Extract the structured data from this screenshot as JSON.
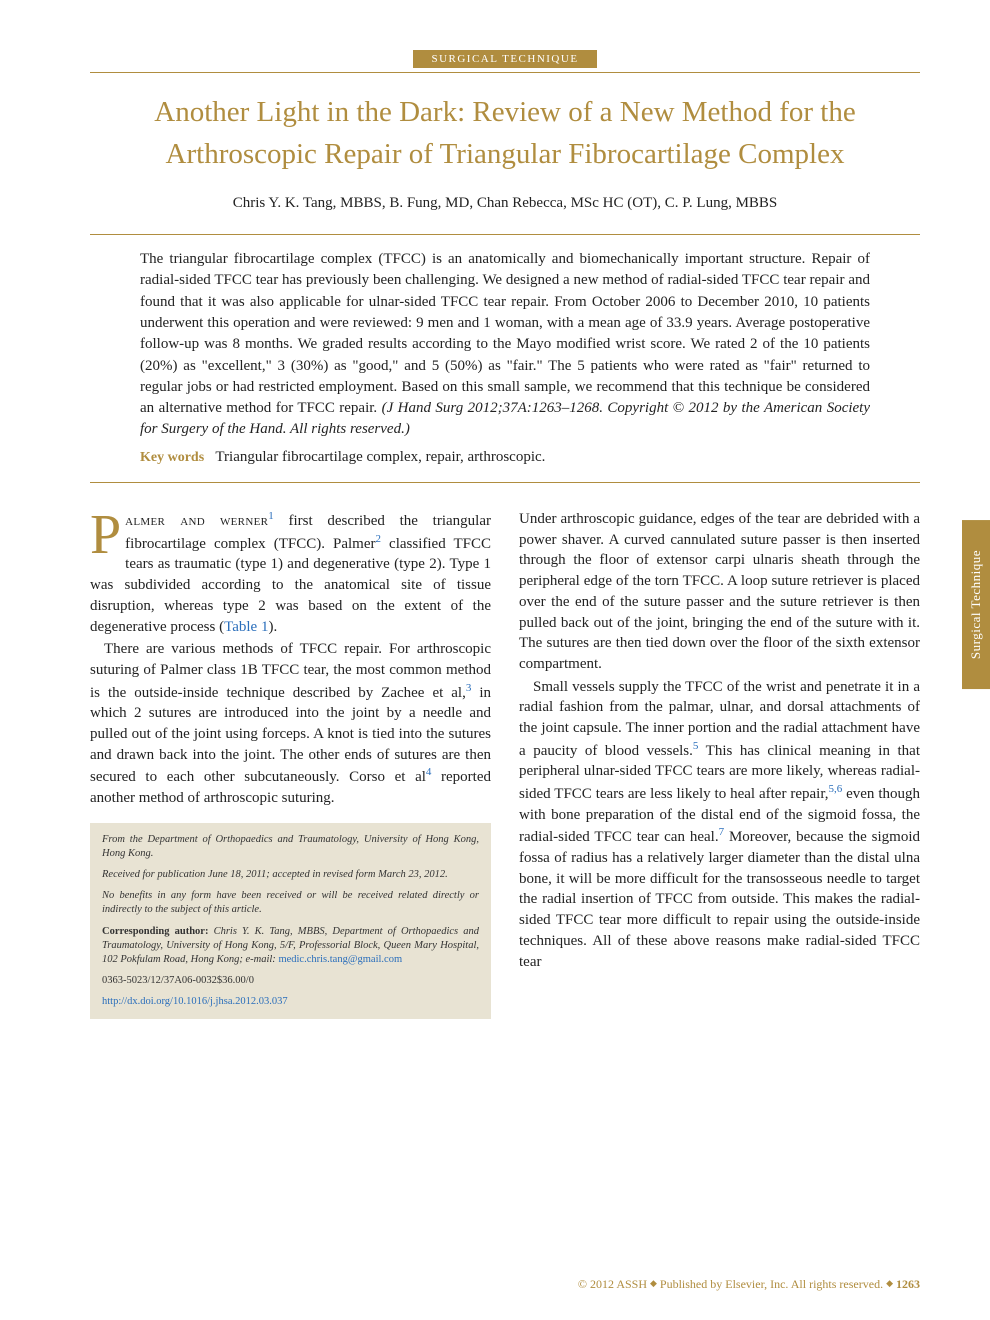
{
  "section_badge": "SURGICAL TECHNIQUE",
  "title": "Another Light in the Dark: Review of a New Method for the Arthroscopic Repair of Triangular Fibrocartilage Complex",
  "authors": "Chris Y. K. Tang, MBBS, B. Fung, MD, Chan Rebecca, MSc HC (OT), C. P. Lung, MBBS",
  "abstract": "The triangular fibrocartilage complex (TFCC) is an anatomically and biomechanically important structure. Repair of radial-sided TFCC tear has previously been challenging. We designed a new method of radial-sided TFCC tear repair and found that it was also applicable for ulnar-sided TFCC tear repair. From October 2006 to December 2010, 10 patients underwent this operation and were reviewed: 9 men and 1 woman, with a mean age of 33.9 years. Average postoperative follow-up was 8 months. We graded results according to the Mayo modified wrist score. We rated 2 of the 10 patients (20%) as \"excellent,\" 3 (30%) as \"good,\" and 5 (50%) as \"fair.\" The 5 patients who were rated as \"fair\" returned to regular jobs or had restricted employment. Based on this small sample, we recommend that this technique be considered an alternative method for TFCC repair.",
  "citation_inline": "(J Hand Surg 2012;37A:1263–1268. Copyright © 2012 by the American Society for Surgery of the Hand. All rights reserved.)",
  "keywords_label": "Key words",
  "keywords": "Triangular fibrocartilage complex, repair, arthroscopic.",
  "body": {
    "left": {
      "p1_dropcap": "P",
      "p1_smallcaps": "almer and werner",
      "p1_ref1": "1",
      "p1_after_ref1": " first described the triangular fibrocartilage complex (TFCC). Palmer",
      "p1_ref2": "2",
      "p1_after_ref2": " classified TFCC tears as traumatic (type 1) and degenerative (type 2). Type 1 was subdivided according to the anatomical site of tissue disruption, whereas type 2 was based on the extent of the degenerative process (",
      "p1_table_link": "Table 1",
      "p1_end": ").",
      "p2_a": "There are various methods of TFCC repair. For arthroscopic suturing of Palmer class 1B TFCC tear, the most common method is the outside-inside technique described by Zachee et al,",
      "p2_ref3": "3",
      "p2_b": " in which 2 sutures are introduced into the joint by a needle and pulled out of the joint using forceps. A knot is tied into the sutures and drawn back into the joint. The other ends of sutures are then secured to each other subcutaneously. Corso et al",
      "p2_ref4": "4",
      "p2_c": " reported another method of arthroscopic suturing."
    },
    "right": {
      "p1": "Under arthroscopic guidance, edges of the tear are debrided with a power shaver. A curved cannulated suture passer is then inserted through the floor of extensor carpi ulnaris sheath through the peripheral edge of the torn TFCC. A loop suture retriever is placed over the end of the suture passer and the suture retriever is then pulled back out of the joint, bringing the end of the suture with it. The sutures are then tied down over the floor of the sixth extensor compartment.",
      "p2_a": "Small vessels supply the TFCC of the wrist and penetrate it in a radial fashion from the palmar, ulnar, and dorsal attachments of the joint capsule. The inner portion and the radial attachment have a paucity of blood vessels.",
      "p2_ref5": "5",
      "p2_b": " This has clinical meaning in that peripheral ulnar-sided TFCC tears are more likely, whereas radial-sided TFCC tears are less likely to heal after repair,",
      "p2_ref56": "5,6",
      "p2_c": " even though with bone preparation of the distal end of the sigmoid fossa, the radial-sided TFCC tear can heal.",
      "p2_ref7": "7",
      "p2_d": " Moreover, because the sigmoid fossa of radius has a relatively larger diameter than the distal ulna bone, it will be more difficult for the transosseous needle to target the radial insertion of TFCC from outside. This makes the radial-sided TFCC tear more difficult to repair using the outside-inside techniques. All of these above reasons make radial-sided TFCC tear"
    }
  },
  "footnotes": {
    "affil": "From the Department of Orthopaedics and Traumatology, University of Hong Kong, Hong Kong.",
    "received": "Received for publication June 18, 2011; accepted in revised form March 23, 2012.",
    "coi": "No benefits in any form have been received or will be received related directly or indirectly to the subject of this article.",
    "corr_label": "Corresponding author:",
    "corr": " Chris Y. K. Tang, MBBS, Department of Orthopaedics and Traumatology, University of Hong Kong, 5/F, Professorial Block, Queen Mary Hospital, 102 Pokfulam Road, Hong Kong; e-mail: ",
    "email": "medic.chris.tang@gmail.com",
    "issn": "0363-5023/12/37A06-0032$36.00/0",
    "doi": "http://dx.doi.org/10.1016/j.jhsa.2012.03.037"
  },
  "side_tab": "Surgical Technique",
  "footer": {
    "text": "© 2012 ASSH ",
    "publisher": " Published by Elsevier, Inc. All rights reserved. ",
    "page": "1263"
  },
  "colors": {
    "accent": "#b08d3f",
    "link": "#2a6ebb",
    "footnote_bg": "#e8e3d3",
    "text": "#222222",
    "background": "#ffffff"
  }
}
